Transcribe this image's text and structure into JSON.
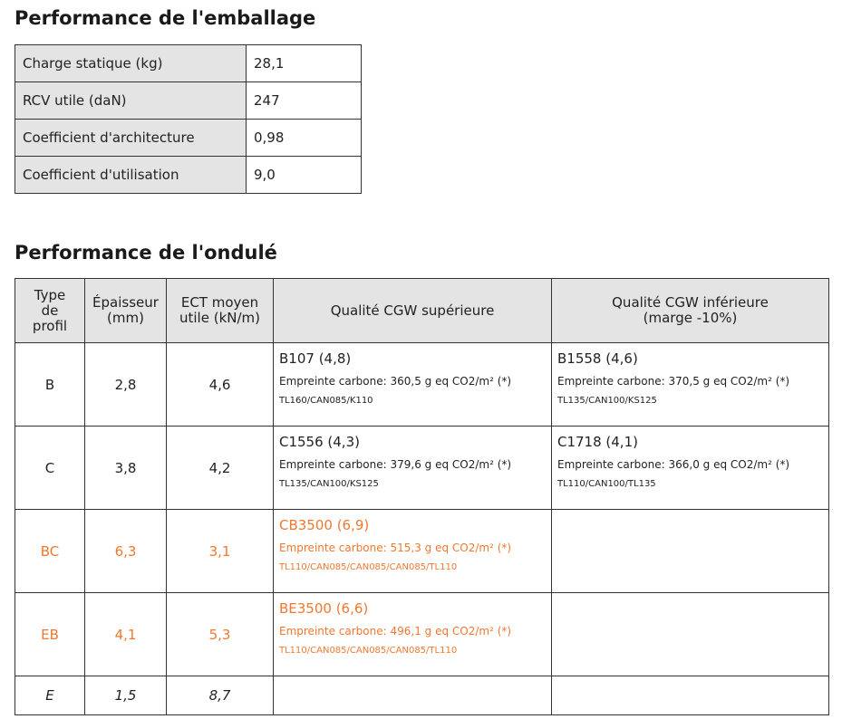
{
  "packaging": {
    "title": "Performance de l'emballage",
    "rows": [
      {
        "label": "Charge statique (kg)",
        "value": "28,1"
      },
      {
        "label": "RCV utile (daN)",
        "value": "247"
      },
      {
        "label": "Coefficient d'architecture",
        "value": "0,98"
      },
      {
        "label": "Coefficient d'utilisation",
        "value": "9,0"
      }
    ]
  },
  "ondule": {
    "title": "Performance de l'ondulé",
    "headers": {
      "type": "Type de profil",
      "thickness": "Épaisseur (mm)",
      "ect": "ECT moyen utile (kN/m)",
      "upper": "Qualité CGW supérieure",
      "lower": "Qualité CGW inférieure (marge -10%)"
    },
    "highlight_color": "#f07830",
    "rows": [
      {
        "type": "B",
        "thickness": "2,8",
        "ect": "4,6",
        "upper": {
          "name": "B107 (4,8)",
          "carbon": "Empreinte carbone: 360,5 g eq CO2/m² (*)",
          "composition": "TL160/CAN085/K110"
        },
        "lower": {
          "name": "B1558 (4,6)",
          "carbon": "Empreinte carbone: 370,5 g eq CO2/m² (*)",
          "composition": "TL135/CAN100/KS125"
        }
      },
      {
        "type": "C",
        "thickness": "3,8",
        "ect": "4,2",
        "upper": {
          "name": "C1556 (4,3)",
          "carbon": "Empreinte carbone: 379,6 g eq CO2/m² (*)",
          "composition": "TL135/CAN100/KS125"
        },
        "lower": {
          "name": "C1718 (4,1)",
          "carbon": "Empreinte carbone: 366,0 g eq CO2/m² (*)",
          "composition": "TL110/CAN100/TL135"
        }
      },
      {
        "type": "BC",
        "thickness": "6,3",
        "ect": "3,1",
        "upper": {
          "name": "CB3500 (6,9)",
          "carbon": "Empreinte carbone: 515,3 g eq CO2/m² (*)",
          "composition": "TL110/CAN085/CAN085/CAN085/TL110"
        }
      },
      {
        "type": "EB",
        "thickness": "4,1",
        "ect": "5,3",
        "upper": {
          "name": "BE3500 (6,6)",
          "carbon": "Empreinte carbone: 496,1 g eq CO2/m² (*)",
          "composition": "TL110/CAN085/CAN085/CAN085/TL110"
        }
      },
      {
        "type": "E",
        "thickness": "1,5",
        "ect": "8,7"
      }
    ]
  }
}
